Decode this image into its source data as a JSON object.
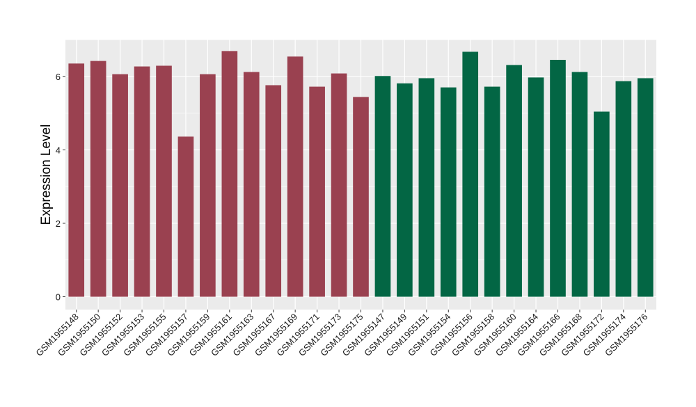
{
  "chart_data": {
    "type": "bar",
    "title": "",
    "xlabel": "",
    "ylabel": "Expression Level",
    "ylim": [
      -0.35,
      7.0
    ],
    "yticks": [
      0,
      2,
      4,
      6
    ],
    "grid": true,
    "categories": [
      "GSM1955148",
      "GSM1955150",
      "GSM1955152",
      "GSM1955153",
      "GSM1955155",
      "GSM1955157",
      "GSM1955159",
      "GSM1955161",
      "GSM1955163",
      "GSM1955167",
      "GSM1955169",
      "GSM1955171",
      "GSM1955173",
      "GSM1955175",
      "GSM1955147",
      "GSM1955149",
      "GSM1955151",
      "GSM1955154",
      "GSM1955156",
      "GSM1955158",
      "GSM1955160",
      "GSM1955164",
      "GSM1955166",
      "GSM1955168",
      "GSM1955172",
      "GSM1955174",
      "GSM1955176"
    ],
    "values": [
      6.35,
      6.42,
      6.06,
      6.27,
      6.29,
      4.36,
      6.06,
      6.69,
      6.12,
      5.76,
      6.54,
      5.72,
      6.08,
      5.44,
      6.01,
      5.81,
      5.95,
      5.7,
      6.67,
      5.72,
      6.31,
      5.97,
      6.45,
      6.12,
      5.04,
      5.87,
      5.95
    ],
    "groups": [
      0,
      0,
      0,
      0,
      0,
      0,
      0,
      0,
      0,
      0,
      0,
      0,
      0,
      0,
      1,
      1,
      1,
      1,
      1,
      1,
      1,
      1,
      1,
      1,
      1,
      1,
      1
    ],
    "colors": [
      "#9a4150",
      "#036644"
    ],
    "panel_background": "#ebebeb",
    "grid_color": "#ffffff"
  }
}
